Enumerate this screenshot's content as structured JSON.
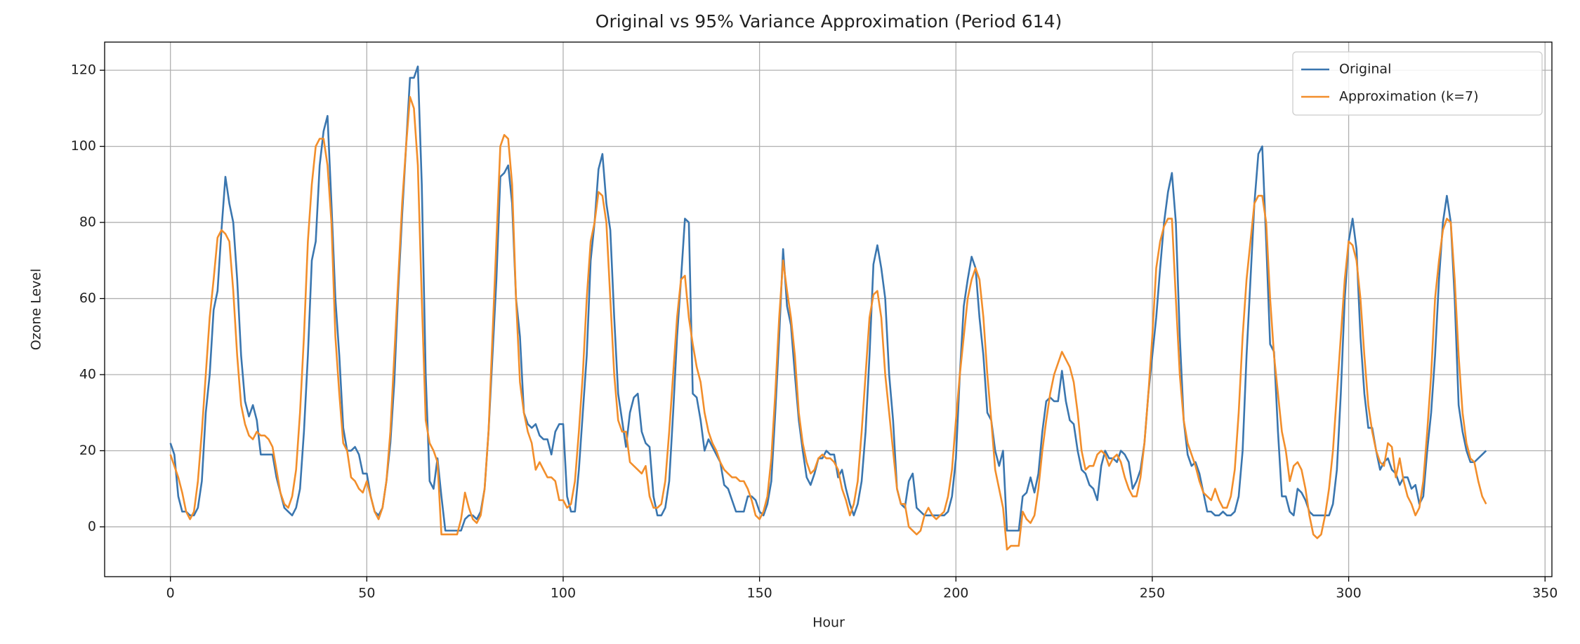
{
  "chart_data": {
    "type": "line",
    "title": "Original vs 95% Variance Approximation (Period 614)",
    "x_label": "Hour",
    "y_label": "Ozone Level",
    "x": [
      0,
      1,
      2,
      3,
      4,
      5,
      6,
      7,
      8,
      9,
      10,
      11,
      12,
      13,
      14,
      15,
      16,
      17,
      18,
      19,
      20,
      21,
      22,
      23,
      24,
      25,
      26,
      27,
      28,
      29,
      30,
      31,
      32,
      33,
      34,
      35,
      36,
      37,
      38,
      39,
      40,
      41,
      42,
      43,
      44,
      45,
      46,
      47,
      48,
      49,
      50,
      51,
      52,
      53,
      54,
      55,
      56,
      57,
      58,
      59,
      60,
      61,
      62,
      63,
      64,
      65,
      66,
      67,
      68,
      69,
      70,
      71,
      72,
      73,
      74,
      75,
      76,
      77,
      78,
      79,
      80,
      81,
      82,
      83,
      84,
      85,
      86,
      87,
      88,
      89,
      90,
      91,
      92,
      93,
      94,
      95,
      96,
      97,
      98,
      99,
      100,
      101,
      102,
      103,
      104,
      105,
      106,
      107,
      108,
      109,
      110,
      111,
      112,
      113,
      114,
      115,
      116,
      117,
      118,
      119,
      120,
      121,
      122,
      123,
      124,
      125,
      126,
      127,
      128,
      129,
      130,
      131,
      132,
      133,
      134,
      135,
      136,
      137,
      138,
      139,
      140,
      141,
      142,
      143,
      144,
      145,
      146,
      147,
      148,
      149,
      150,
      151,
      152,
      153,
      154,
      155,
      156,
      157,
      158,
      159,
      160,
      161,
      162,
      163,
      164,
      165,
      166,
      167,
      168,
      169,
      170,
      171,
      172,
      173,
      174,
      175,
      176,
      177,
      178,
      179,
      180,
      181,
      182,
      183,
      184,
      185,
      186,
      187,
      188,
      189,
      190,
      191,
      192,
      193,
      194,
      195,
      196,
      197,
      198,
      199,
      200,
      201,
      202,
      203,
      204,
      205,
      206,
      207,
      208,
      209,
      210,
      211,
      212,
      213,
      214,
      215,
      216,
      217,
      218,
      219,
      220,
      221,
      222,
      223,
      224,
      225,
      226,
      227,
      228,
      229,
      230,
      231,
      232,
      233,
      234,
      235,
      236,
      237,
      238,
      239,
      240,
      241,
      242,
      243,
      244,
      245,
      246,
      247,
      248,
      249,
      250,
      251,
      252,
      253,
      254,
      255,
      256,
      257,
      258,
      259,
      260,
      261,
      262,
      263,
      264,
      265,
      266,
      267,
      268,
      269,
      270,
      271,
      272,
      273,
      274,
      275,
      276,
      277,
      278,
      279,
      280,
      281,
      282,
      283,
      284,
      285,
      286,
      287,
      288,
      289,
      290,
      291,
      292,
      293,
      294,
      295,
      296,
      297,
      298,
      299,
      300,
      301,
      302,
      303,
      304,
      305,
      306,
      307,
      308,
      309,
      310,
      311,
      312,
      313,
      314,
      315,
      316,
      317,
      318,
      319,
      320,
      321,
      322,
      323,
      324,
      325,
      326,
      327,
      328,
      329,
      330,
      331,
      332,
      333,
      334,
      335
    ],
    "series": [
      {
        "name": "Original",
        "color": "#3a76af",
        "values": [
          22,
          19,
          8,
          4,
          4,
          3,
          3,
          5,
          12,
          30,
          40,
          57,
          62,
          78,
          92,
          85,
          80,
          65,
          45,
          33,
          29,
          32,
          28,
          19,
          19,
          19,
          19,
          13,
          9,
          5,
          4,
          3,
          5,
          10,
          25,
          45,
          70,
          75,
          95,
          104,
          108,
          85,
          60,
          45,
          26,
          20,
          20,
          21,
          19,
          14,
          14,
          8,
          4,
          3,
          5,
          12,
          22,
          38,
          62,
          82,
          100,
          118,
          118,
          121,
          90,
          40,
          12,
          10,
          18,
          8,
          -1,
          -1,
          -1,
          -1,
          -1,
          2,
          3,
          3,
          2,
          4,
          10,
          25,
          45,
          65,
          92,
          93,
          95,
          85,
          60,
          50,
          30,
          27,
          26,
          27,
          24,
          23,
          23,
          19,
          25,
          27,
          27,
          8,
          4,
          4,
          15,
          30,
          45,
          70,
          80,
          94,
          98,
          85,
          78,
          55,
          35,
          28,
          21,
          30,
          34,
          35,
          25,
          22,
          21,
          8,
          3,
          3,
          5,
          12,
          30,
          50,
          65,
          81,
          80,
          35,
          34,
          28,
          20,
          23,
          21,
          19,
          17,
          11,
          10,
          7,
          4,
          4,
          4,
          8,
          8,
          7,
          4,
          3,
          6,
          12,
          30,
          50,
          73,
          58,
          53,
          40,
          28,
          20,
          13,
          11,
          14,
          18,
          18,
          20,
          19,
          19,
          13,
          15,
          10,
          6,
          3,
          6,
          12,
          25,
          45,
          69,
          74,
          68,
          60,
          40,
          28,
          10,
          6,
          5,
          12,
          14,
          5,
          4,
          3,
          3,
          3,
          3,
          3,
          3,
          4,
          8,
          18,
          40,
          58,
          65,
          71,
          68,
          55,
          45,
          30,
          28,
          20,
          16,
          20,
          -1,
          -1,
          -1,
          -1,
          8,
          9,
          13,
          9,
          14,
          25,
          33,
          34,
          33,
          33,
          41,
          33,
          28,
          27,
          20,
          15,
          14,
          11,
          10,
          7,
          16,
          20,
          18,
          18,
          17,
          20,
          19,
          17,
          10,
          12,
          15,
          22,
          35,
          45,
          55,
          68,
          80,
          88,
          93,
          80,
          50,
          28,
          19,
          16,
          17,
          14,
          9,
          4,
          4,
          3,
          3,
          4,
          3,
          3,
          4,
          8,
          20,
          45,
          65,
          85,
          98,
          100,
          75,
          48,
          46,
          25,
          8,
          8,
          4,
          3,
          10,
          9,
          7,
          4,
          3,
          3,
          3,
          3,
          3,
          6,
          15,
          35,
          60,
          75,
          81,
          73,
          50,
          35,
          26,
          26,
          20,
          15,
          17,
          18,
          15,
          14,
          11,
          13,
          13,
          10,
          11,
          6,
          8,
          20,
          30,
          45,
          65,
          80,
          87,
          80,
          60,
          32,
          25,
          20,
          17,
          17,
          18,
          19,
          20
        ]
      },
      {
        "name": "Approximation (k=7)",
        "color": "#f28e2b",
        "values": [
          19,
          16,
          13,
          9,
          4,
          2,
          4,
          12,
          25,
          40,
          55,
          65,
          76,
          78,
          77,
          75,
          62,
          45,
          32,
          27,
          24,
          23,
          25,
          24,
          24,
          23,
          21,
          15,
          9,
          6,
          5,
          8,
          15,
          30,
          50,
          75,
          90,
          100,
          102,
          102,
          95,
          80,
          50,
          35,
          22,
          20,
          13,
          12,
          10,
          9,
          12,
          8,
          4,
          2,
          5,
          12,
          25,
          45,
          65,
          85,
          100,
          113,
          110,
          95,
          60,
          28,
          22,
          20,
          17,
          -2,
          -2,
          -2,
          -2,
          -2,
          2,
          9,
          5,
          2,
          1,
          3,
          10,
          25,
          50,
          75,
          100,
          103,
          102,
          90,
          60,
          38,
          30,
          25,
          22,
          15,
          17,
          15,
          13,
          13,
          12,
          7,
          7,
          5,
          6,
          12,
          25,
          40,
          60,
          75,
          80,
          88,
          87,
          80,
          60,
          40,
          28,
          25,
          25,
          17,
          16,
          15,
          14,
          16,
          8,
          5,
          5,
          6,
          12,
          25,
          40,
          55,
          65,
          66,
          55,
          48,
          42,
          38,
          30,
          25,
          22,
          20,
          17,
          15,
          14,
          13,
          13,
          12,
          12,
          10,
          7,
          3,
          2,
          4,
          8,
          18,
          35,
          55,
          70,
          62,
          55,
          45,
          30,
          22,
          17,
          14,
          15,
          18,
          19,
          18,
          18,
          17,
          15,
          10,
          7,
          3,
          6,
          12,
          25,
          40,
          55,
          61,
          62,
          55,
          40,
          30,
          20,
          10,
          6,
          6,
          0,
          -1,
          -2,
          -1,
          3,
          5,
          3,
          2,
          3,
          4,
          8,
          15,
          28,
          40,
          50,
          60,
          65,
          68,
          65,
          55,
          40,
          28,
          15,
          10,
          5,
          -6,
          -5,
          -5,
          -5,
          4,
          2,
          1,
          3,
          10,
          20,
          28,
          35,
          40,
          43,
          46,
          44,
          42,
          38,
          30,
          20,
          15,
          16,
          16,
          19,
          20,
          19,
          16,
          18,
          19,
          17,
          13,
          10,
          8,
          8,
          13,
          22,
          35,
          50,
          68,
          75,
          79,
          81,
          81,
          60,
          40,
          28,
          22,
          19,
          16,
          12,
          9,
          8,
          7,
          10,
          7,
          5,
          5,
          8,
          15,
          30,
          50,
          65,
          75,
          85,
          87,
          87,
          80,
          60,
          45,
          35,
          25,
          20,
          12,
          16,
          17,
          15,
          10,
          3,
          -2,
          -3,
          -2,
          3,
          10,
          20,
          35,
          50,
          65,
          75,
          74,
          70,
          60,
          45,
          32,
          25,
          20,
          17,
          16,
          22,
          21,
          13,
          18,
          12,
          8,
          6,
          3,
          5,
          12,
          25,
          40,
          60,
          70,
          78,
          81,
          80,
          65,
          45,
          30,
          22,
          18,
          17,
          12,
          8,
          6
        ]
      }
    ],
    "xlim": [
      -16.75,
      351.75
    ],
    "ylim": [
      -13.1,
      127.4
    ],
    "xticks": [
      0,
      50,
      100,
      150,
      200,
      250,
      300,
      350
    ],
    "yticks": [
      0,
      20,
      40,
      60,
      80,
      100,
      120
    ],
    "grid": true,
    "legend": "upper right"
  }
}
